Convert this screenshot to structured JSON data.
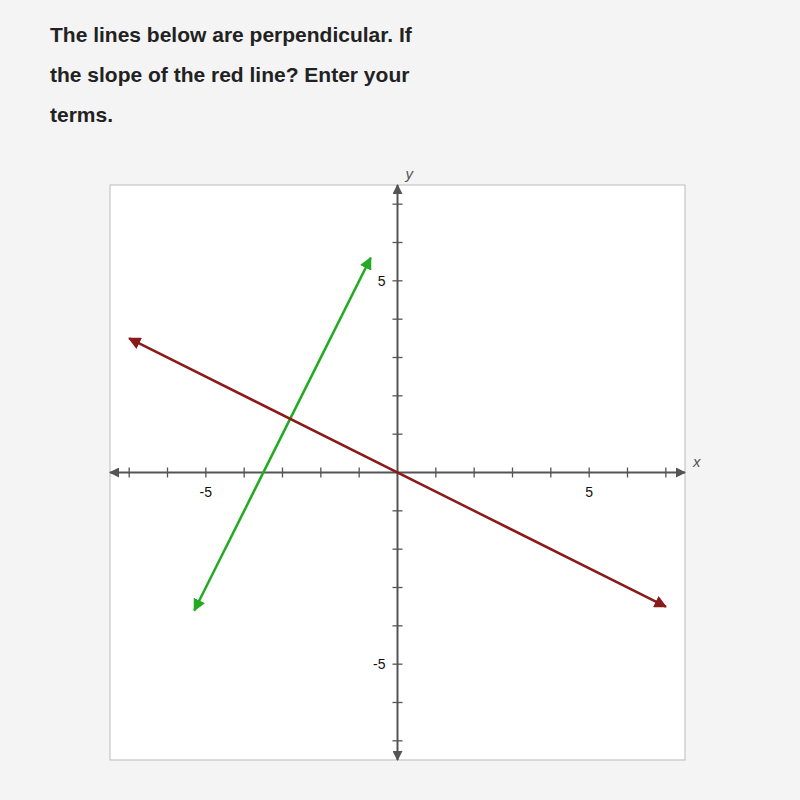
{
  "chart_data": {
    "type": "line",
    "title": [
      "The lines below are perpendicular. If",
      "the slope of the red line? Enter your",
      "terms."
    ],
    "xlabel": "x",
    "ylabel": "y",
    "xlim": [
      -7.5,
      7.5
    ],
    "ylim": [
      -7.5,
      7.5
    ],
    "xticks": [
      {
        "value": -7,
        "label": null
      },
      {
        "value": -6,
        "label": null
      },
      -5,
      {
        "value": -4,
        "label": null
      },
      {
        "value": -3,
        "label": null
      },
      {
        "value": -2,
        "label": null
      },
      {
        "value": -1,
        "label": null
      },
      {
        "value": 1,
        "label": null
      },
      {
        "value": 2,
        "label": null
      },
      {
        "value": 3,
        "label": null
      },
      {
        "value": 4,
        "label": null
      },
      5,
      {
        "value": 6,
        "label": null
      },
      {
        "value": 7,
        "label": null
      }
    ],
    "yticks": [
      {
        "value": -7,
        "label": null
      },
      {
        "value": -6,
        "label": null
      },
      -5,
      {
        "value": -4,
        "label": null
      },
      {
        "value": -3,
        "label": null
      },
      {
        "value": -2,
        "label": null
      },
      {
        "value": -1,
        "label": null
      },
      {
        "value": 1,
        "label": null
      },
      {
        "value": 2,
        "label": null
      },
      {
        "value": 3,
        "label": null
      },
      {
        "value": 4,
        "label": null
      },
      5,
      {
        "value": 6,
        "label": null
      },
      {
        "value": 7,
        "label": null
      }
    ],
    "series": [
      {
        "color": "#22aa22",
        "x": [
          -5.3,
          -0.7
        ],
        "values": [
          -3.6,
          5.6
        ]
      },
      {
        "color": "#8b1a1a",
        "x": [
          -7.0,
          7.0
        ],
        "values": [
          3.5,
          -3.5
        ]
      }
    ]
  }
}
